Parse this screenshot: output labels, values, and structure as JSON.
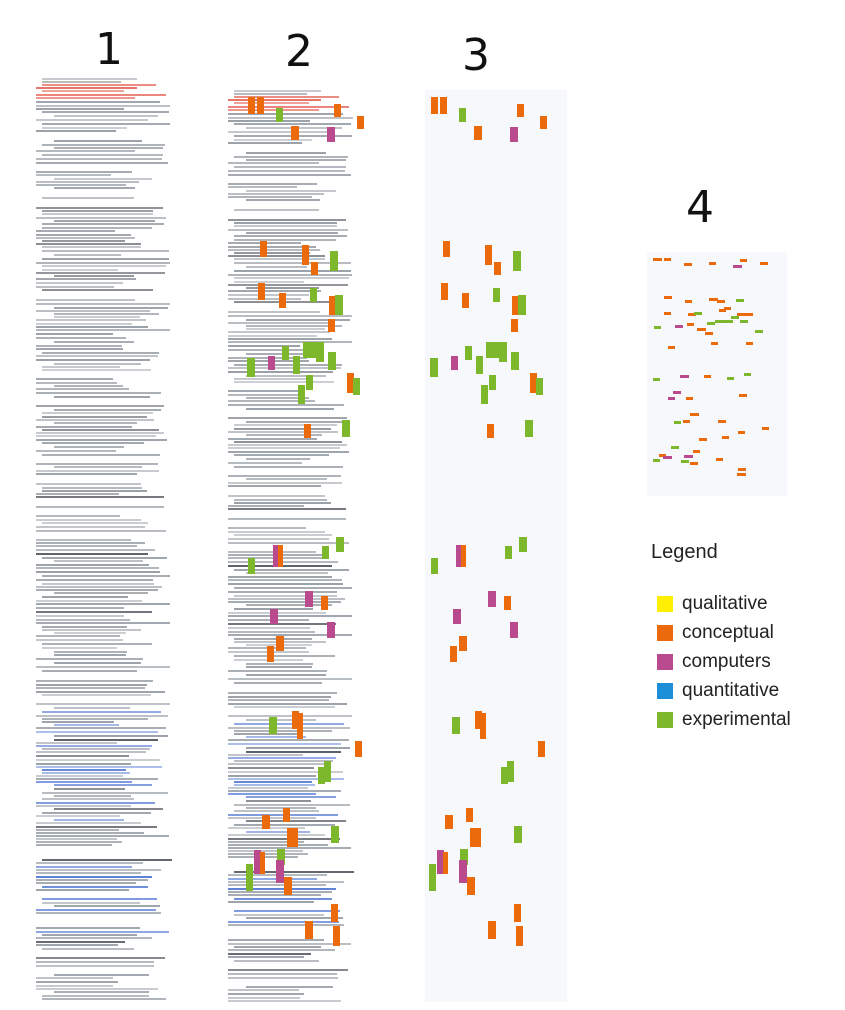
{
  "stages": [
    {
      "label": "1"
    },
    {
      "label": "2"
    },
    {
      "label": "3"
    },
    {
      "label": "4"
    }
  ],
  "legend": {
    "title": "Legend",
    "items": [
      {
        "label": "qualitative",
        "color": "#ffef00"
      },
      {
        "label": "conceptual",
        "color": "#ea6a0c"
      },
      {
        "label": "computers",
        "color": "#b94a8d"
      },
      {
        "label": "quantitative",
        "color": "#1d8fd8"
      },
      {
        "label": "experimental",
        "color": "#7db72c"
      }
    ]
  }
}
